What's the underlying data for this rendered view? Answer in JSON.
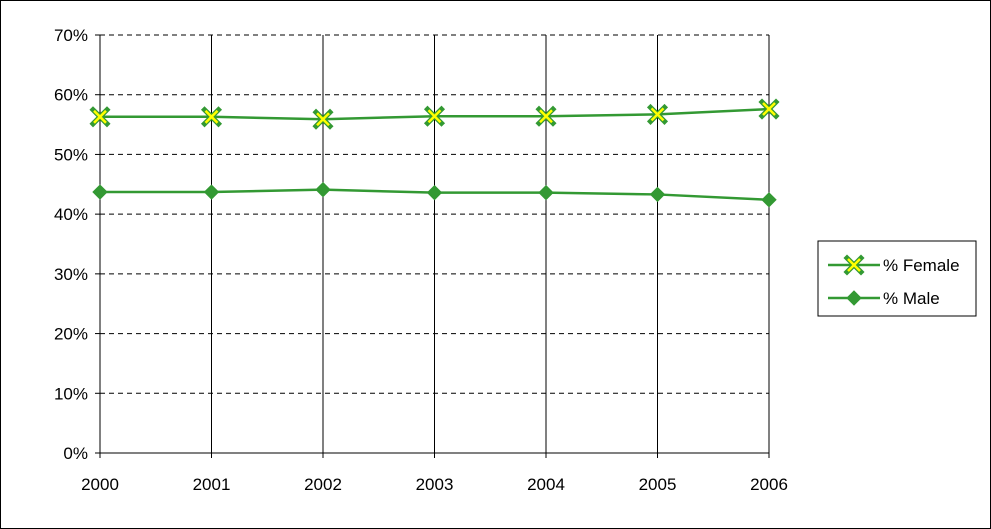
{
  "chart_data": {
    "type": "line",
    "categories": [
      "2000",
      "2001",
      "2002",
      "2003",
      "2004",
      "2005",
      "2006"
    ],
    "y_ticks": [
      "0%",
      "10%",
      "20%",
      "30%",
      "40%",
      "50%",
      "60%",
      "70%"
    ],
    "ylim": [
      0,
      70
    ],
    "y_unit": "%",
    "grid": "horizontal dashed + vertical solid",
    "legend_position": "right",
    "series": [
      {
        "name": "% Female",
        "values": [
          56.3,
          56.3,
          55.9,
          56.4,
          56.4,
          56.7,
          57.6
        ],
        "line_color": "#339933",
        "marker": "x",
        "marker_color": "#ffff00"
      },
      {
        "name": "% Male",
        "values": [
          43.7,
          43.7,
          44.1,
          43.6,
          43.6,
          43.3,
          42.4
        ],
        "line_color": "#339933",
        "marker": "diamond",
        "marker_color": "#339933"
      }
    ]
  }
}
